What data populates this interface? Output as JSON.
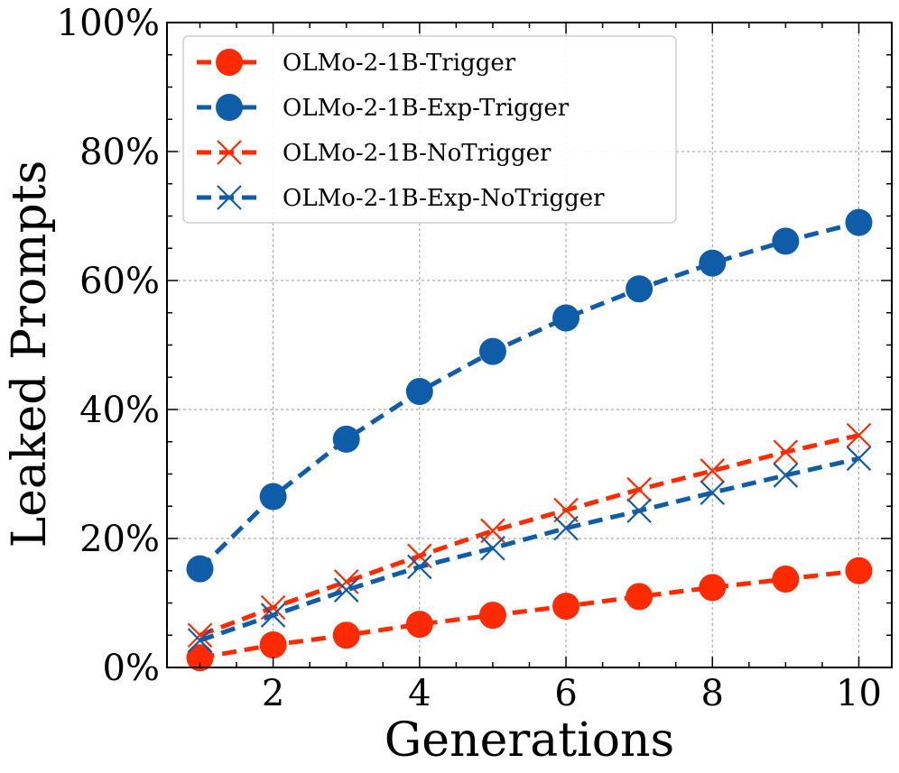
{
  "chart_data": {
    "type": "line",
    "title": "",
    "xlabel": "Generations",
    "ylabel": "Leaked Prompts",
    "x": [
      1,
      2,
      3,
      4,
      5,
      6,
      7,
      8,
      9,
      10
    ],
    "xlim": [
      0.55,
      10.45
    ],
    "ylim": [
      0,
      100
    ],
    "xticks": [
      2,
      4,
      6,
      8,
      10
    ],
    "yticks": [
      0,
      20,
      40,
      60,
      80,
      100
    ],
    "ytick_labels": [
      "0%",
      "20%",
      "40%",
      "60%",
      "80%",
      "100%"
    ],
    "grid": true,
    "legend_position": "top-left",
    "series": [
      {
        "name": "OLMo-2-1B-Trigger",
        "color": "#ff2a00",
        "marker": "circle",
        "values": [
          1.5,
          3.5,
          5.0,
          6.7,
          8.1,
          9.5,
          11.0,
          12.4,
          13.7,
          15.0
        ]
      },
      {
        "name": "OLMo-2-1B-Exp-Trigger",
        "color": "#0f5ca8",
        "marker": "circle",
        "values": [
          15.3,
          26.5,
          35.4,
          42.8,
          49.0,
          54.2,
          58.7,
          62.7,
          66.1,
          69.0
        ]
      },
      {
        "name": "OLMo-2-1B-NoTrigger",
        "color": "#ff2a00",
        "marker": "x",
        "values": [
          5.0,
          9.3,
          13.3,
          17.3,
          21.2,
          24.4,
          27.6,
          30.5,
          33.4,
          36.0
        ]
      },
      {
        "name": "OLMo-2-1B-Exp-NoTrigger",
        "color": "#0f5ca8",
        "marker": "x",
        "values": [
          4.2,
          8.1,
          12.0,
          15.6,
          18.5,
          21.6,
          24.3,
          27.1,
          29.8,
          32.4
        ]
      }
    ]
  }
}
